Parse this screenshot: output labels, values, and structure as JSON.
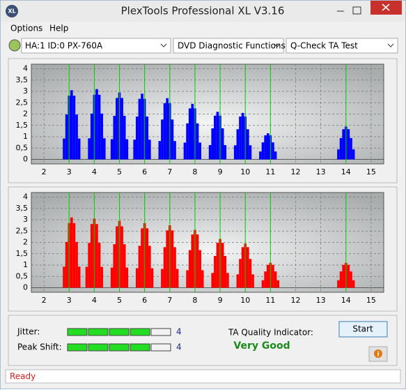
{
  "window": {
    "title": "PlexTools Professional XL V3.16",
    "icon": "XL"
  },
  "menu": [
    "Options",
    "Help"
  ],
  "selectors": [
    "HA:1 ID:0  PX-760A",
    "DVD Diagnostic Functions",
    "Q-Check TA Test"
  ],
  "chart_data": [
    {
      "type": "bar",
      "color": "#0000ff",
      "marker_color": "#00d000",
      "grid": true,
      "xlim": [
        1.5,
        15.5
      ],
      "ylim": [
        -0.2,
        4.2
      ],
      "xticks": [
        2,
        3,
        4,
        5,
        6,
        7,
        8,
        9,
        10,
        11,
        12,
        13,
        14,
        15
      ],
      "yticks": [
        0,
        {
          "value": 0.5,
          "label": "0,5"
        },
        1,
        {
          "value": 1.5,
          "label": "1,5"
        },
        2,
        {
          "value": 2.5,
          "label": "2,5"
        },
        3,
        {
          "value": 3.5,
          "label": "3,5"
        },
        4
      ],
      "markers": [
        3,
        4,
        5,
        6,
        7,
        8,
        9,
        10,
        11,
        14
      ],
      "x": [
        2.8,
        2.9,
        3.0,
        3.1,
        3.2,
        3.3,
        3.4,
        3.8,
        3.9,
        4.0,
        4.1,
        4.2,
        4.3,
        4.4,
        4.7,
        4.8,
        4.9,
        5.0,
        5.1,
        5.2,
        5.3,
        5.6,
        5.7,
        5.8,
        5.9,
        6.0,
        6.1,
        6.2,
        6.6,
        6.7,
        6.8,
        6.9,
        7.0,
        7.1,
        7.2,
        7.6,
        7.7,
        7.8,
        7.9,
        8.0,
        8.1,
        8.2,
        8.6,
        8.7,
        8.8,
        8.9,
        9.0,
        9.1,
        9.2,
        9.6,
        9.7,
        9.8,
        9.9,
        10.0,
        10.1,
        10.2,
        10.6,
        10.7,
        10.8,
        10.9,
        11.0,
        11.1,
        11.2,
        13.7,
        13.8,
        13.9,
        14.0,
        14.1,
        14.2,
        14.3
      ],
      "values": [
        0.92,
        1.98,
        2.81,
        3.05,
        2.81,
        1.98,
        0.92,
        0.93,
        2.02,
        2.85,
        3.1,
        2.85,
        2.02,
        0.93,
        0.89,
        1.92,
        2.71,
        2.95,
        2.71,
        1.92,
        0.89,
        0.87,
        1.89,
        2.67,
        2.9,
        2.67,
        1.89,
        0.87,
        0.81,
        1.76,
        2.48,
        2.7,
        2.48,
        1.76,
        0.81,
        0.74,
        1.59,
        2.25,
        2.45,
        2.25,
        1.59,
        0.74,
        0.63,
        1.37,
        1.93,
        2.1,
        1.93,
        1.37,
        0.63,
        0.62,
        1.33,
        1.89,
        2.05,
        1.89,
        1.33,
        0.62,
        0.35,
        0.75,
        1.06,
        1.15,
        1.06,
        0.75,
        0.35,
        0.44,
        0.94,
        1.33,
        1.45,
        1.33,
        0.94,
        0.44
      ]
    },
    {
      "type": "bar",
      "color": "#ff0000",
      "marker_color": "#00d000",
      "grid": true,
      "xlim": [
        1.5,
        15.5
      ],
      "ylim": [
        -0.2,
        4.2
      ],
      "xticks": [
        2,
        3,
        4,
        5,
        6,
        7,
        8,
        9,
        10,
        11,
        12,
        13,
        14,
        15
      ],
      "yticks": [
        0,
        {
          "value": 0.5,
          "label": "0,5"
        },
        1,
        {
          "value": 1.5,
          "label": "1,5"
        },
        2,
        {
          "value": 2.5,
          "label": "2,5"
        },
        3,
        {
          "value": 3.5,
          "label": "3,5"
        },
        4
      ],
      "markers": [
        3,
        4,
        5,
        6,
        7,
        8,
        9,
        10,
        11,
        14
      ],
      "x": [
        2.8,
        2.9,
        3.0,
        3.1,
        3.2,
        3.3,
        3.4,
        3.7,
        3.8,
        3.9,
        4.0,
        4.1,
        4.2,
        4.3,
        4.7,
        4.8,
        4.9,
        5.0,
        5.1,
        5.2,
        5.3,
        5.7,
        5.8,
        5.9,
        6.0,
        6.1,
        6.2,
        6.3,
        6.7,
        6.8,
        6.9,
        7.0,
        7.1,
        7.2,
        7.3,
        7.7,
        7.8,
        7.9,
        8.0,
        8.1,
        8.2,
        8.3,
        8.7,
        8.8,
        8.9,
        9.0,
        9.1,
        9.2,
        9.3,
        9.7,
        9.8,
        9.9,
        10.0,
        10.1,
        10.2,
        10.3,
        10.7,
        10.8,
        10.9,
        11.0,
        11.1,
        11.2,
        11.3,
        13.7,
        13.8,
        13.9,
        14.0,
        14.1,
        14.2,
        14.3
      ],
      "values": [
        0.93,
        2.02,
        2.85,
        3.1,
        2.85,
        2.02,
        0.93,
        0.92,
        1.98,
        2.81,
        3.05,
        2.81,
        1.98,
        0.92,
        0.89,
        1.92,
        2.71,
        2.95,
        2.71,
        1.92,
        0.89,
        0.86,
        1.85,
        2.62,
        2.85,
        2.62,
        1.85,
        0.86,
        0.83,
        1.79,
        2.53,
        2.75,
        2.53,
        1.79,
        0.83,
        0.77,
        1.66,
        2.35,
        2.55,
        2.35,
        1.66,
        0.77,
        0.65,
        1.4,
        1.98,
        2.15,
        1.98,
        1.4,
        0.65,
        0.59,
        1.27,
        1.79,
        1.95,
        1.79,
        1.27,
        0.59,
        0.33,
        0.72,
        1.01,
        1.1,
        1.01,
        0.72,
        0.33,
        0.33,
        0.72,
        1.01,
        1.1,
        1.01,
        0.72,
        0.33
      ]
    }
  ],
  "meters": [
    {
      "label": "Jitter:",
      "value": 4,
      "segments": 5
    },
    {
      "label": "Peak Shift:",
      "value": 4,
      "segments": 5
    }
  ],
  "quality": {
    "label": "TA Quality Indicator:",
    "value": "Very Good"
  },
  "buttons": {
    "start": "Start",
    "info": "i"
  },
  "status": "Ready"
}
